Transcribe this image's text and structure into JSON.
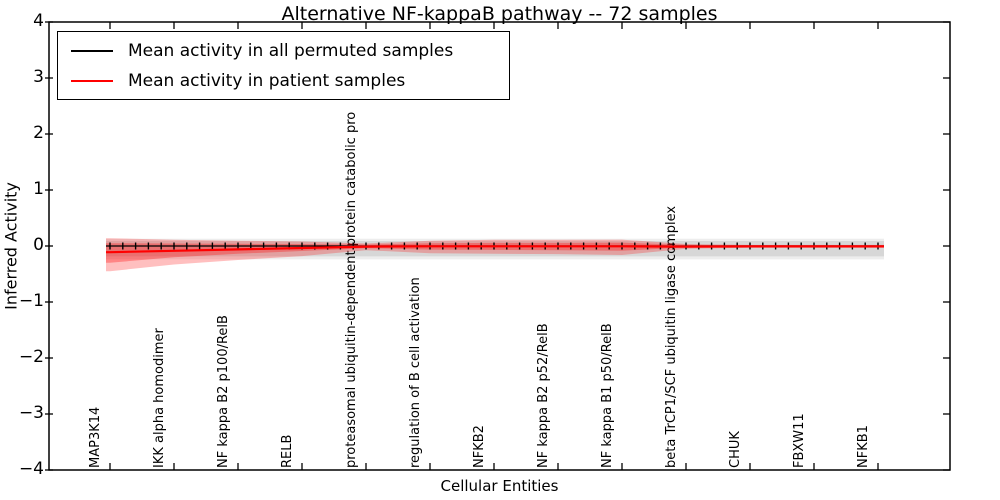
{
  "title": "Alternative NF-kappaB pathway -- 72 samples",
  "axes": {
    "x_label": "Cellular Entities",
    "y_label": "Inferred Activity",
    "y_tick_labels": [
      "4",
      "3",
      "2",
      "1",
      "0",
      "−1",
      "−2",
      "−3",
      "−4"
    ]
  },
  "legend": {
    "entries": [
      {
        "label": "Mean activity in all permuted samples",
        "color": "#000000"
      },
      {
        "label": "Mean activity in patient samples",
        "color": "#ff0000"
      }
    ]
  },
  "chart_data": {
    "type": "line",
    "title": "Alternative NF-kappaB pathway -- 72 samples",
    "xlabel": "Cellular Entities",
    "ylabel": "Inferred Activity",
    "ylim": [
      -4,
      4
    ],
    "y_ticks": [
      4,
      3,
      2,
      1,
      0,
      -1,
      -2,
      -3,
      -4
    ],
    "grid": false,
    "legend_position": "upper left",
    "n_marker_points": 61,
    "categories": [
      "MAP3K14",
      "IKK alpha homodimer",
      "NF kappa B2 p100/RelB",
      "RELB",
      "proteasomal ubiquitin-dependent protein catabolic pro",
      "regulation of B cell activation",
      "NFKB2",
      "NF kappa B2 p52/RelB",
      "NF kappa B1 p50/RelB",
      "beta TrCP1/SCF ubiquitin ligase complex",
      "CHUK",
      "FBXW11",
      "NFKB1"
    ],
    "series": [
      {
        "name": "Mean activity in all permuted samples",
        "color": "#000000",
        "values": [
          0,
          0,
          0,
          0,
          0,
          0,
          0,
          0,
          0,
          0,
          0,
          0,
          0
        ]
      },
      {
        "name": "Mean activity in patient samples",
        "color": "#ff0000",
        "values": [
          -0.11,
          -0.085,
          -0.06,
          -0.035,
          -0.01,
          -0.005,
          -0.005,
          -0.005,
          -0.005,
          -0.01,
          -0.008,
          -0.008,
          -0.008
        ]
      }
    ],
    "bands": [
      {
        "name": "permuted-range-outer",
        "color": "#000000",
        "alpha": 0.07,
        "upper": [
          0.13,
          0.13,
          0.13,
          0.13,
          0.13,
          0.13,
          0.13,
          0.13,
          0.13,
          0.13,
          0.13,
          0.13,
          0.13
        ],
        "lower": [
          -0.24,
          -0.24,
          -0.24,
          -0.24,
          -0.24,
          -0.24,
          -0.24,
          -0.24,
          -0.24,
          -0.24,
          -0.24,
          -0.24,
          -0.24
        ]
      },
      {
        "name": "permuted-range-inner",
        "color": "#000000",
        "alpha": 0.09,
        "upper": [
          0.09,
          0.09,
          0.09,
          0.09,
          0.09,
          0.09,
          0.09,
          0.09,
          0.09,
          0.09,
          0.09,
          0.09,
          0.09
        ],
        "lower": [
          -0.185,
          -0.185,
          -0.185,
          -0.185,
          -0.185,
          -0.185,
          -0.185,
          -0.185,
          -0.185,
          -0.185,
          -0.185,
          -0.185,
          -0.185
        ]
      },
      {
        "name": "patient-range-outer",
        "color": "#ff0000",
        "alpha": 0.25,
        "upper": [
          0.14,
          0.11,
          0.095,
          0.08,
          0.045,
          0.095,
          0.11,
          0.11,
          0.115,
          0.035,
          0.02,
          0.02,
          0.02
        ],
        "lower": [
          -0.45,
          -0.33,
          -0.25,
          -0.18,
          -0.075,
          -0.13,
          -0.14,
          -0.145,
          -0.16,
          -0.05,
          -0.03,
          -0.03,
          -0.03
        ]
      },
      {
        "name": "patient-range-inner",
        "color": "#ff0000",
        "alpha": 0.3,
        "upper": [
          0.05,
          0.045,
          0.04,
          0.035,
          0.025,
          0.05,
          0.055,
          0.055,
          0.06,
          0.02,
          0.012,
          0.012,
          0.012
        ],
        "lower": [
          -0.3,
          -0.2,
          -0.14,
          -0.09,
          -0.04,
          -0.065,
          -0.07,
          -0.075,
          -0.085,
          -0.025,
          -0.018,
          -0.018,
          -0.018
        ]
      }
    ]
  }
}
